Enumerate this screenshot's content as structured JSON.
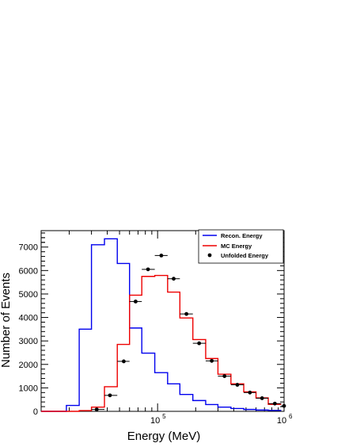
{
  "chart_data": {
    "type": "step-histogram",
    "title": "",
    "xlabel": "Energy (MeV)",
    "ylabel": "Number of Events",
    "xscale": "log",
    "xlim": [
      12000,
      1000000
    ],
    "ylim": [
      0,
      7700
    ],
    "grid": false,
    "legend_placement": "top-right",
    "x_tick_labels": [
      {
        "value": 100000,
        "base": "10",
        "exp": "5"
      },
      {
        "value": 1000000,
        "base": "10",
        "exp": "6"
      }
    ],
    "y_ticks": [
      0,
      1000,
      2000,
      3000,
      4000,
      5000,
      6000,
      7000
    ],
    "bin_edges": [
      12000,
      15000,
      19000,
      24000,
      30000,
      38000,
      48000,
      60000,
      75000,
      95000,
      120000,
      150000,
      190000,
      240000,
      300000,
      380000,
      480000,
      600000,
      750000,
      950000
    ],
    "series": [
      {
        "name": "Recon. Energy",
        "style": "step",
        "color": "#0000ee",
        "values": [
          0,
          0,
          250,
          3500,
          7100,
          7350,
          6300,
          3550,
          2480,
          1650,
          1170,
          720,
          460,
          290,
          180,
          120,
          80,
          55,
          40
        ]
      },
      {
        "name": "MC Energy",
        "style": "step",
        "color": "#ee0000",
        "values": [
          0,
          0,
          0,
          30,
          180,
          1050,
          2850,
          4950,
          5750,
          5790,
          5080,
          3980,
          3060,
          2250,
          1580,
          1170,
          830,
          570,
          300
        ]
      },
      {
        "name": "Unfolded Energy",
        "style": "points-xerr",
        "color": "#000000",
        "points": [
          {
            "x": 33000,
            "xerr": [
              30000,
              38000
            ],
            "y": 80
          },
          {
            "x": 42000,
            "xerr": [
              38000,
              48000
            ],
            "y": 680
          },
          {
            "x": 54000,
            "xerr": [
              48000,
              60000
            ],
            "y": 2130
          },
          {
            "x": 67000,
            "xerr": [
              60000,
              75000
            ],
            "y": 4680
          },
          {
            "x": 84000,
            "xerr": [
              75000,
              95000
            ],
            "y": 6050
          },
          {
            "x": 107000,
            "xerr": [
              95000,
              120000
            ],
            "y": 6640
          },
          {
            "x": 134000,
            "xerr": [
              120000,
              150000
            ],
            "y": 5650
          },
          {
            "x": 169000,
            "xerr": [
              150000,
              190000
            ],
            "y": 4150
          },
          {
            "x": 213000,
            "xerr": [
              190000,
              240000
            ],
            "y": 2900
          },
          {
            "x": 268000,
            "xerr": [
              240000,
              300000
            ],
            "y": 2150
          },
          {
            "x": 338000,
            "xerr": [
              300000,
              380000
            ],
            "y": 1500
          },
          {
            "x": 427000,
            "xerr": [
              380000,
              480000
            ],
            "y": 1130
          },
          {
            "x": 537000,
            "xerr": [
              480000,
              600000
            ],
            "y": 800
          },
          {
            "x": 670000,
            "xerr": [
              600000,
              750000
            ],
            "y": 560
          },
          {
            "x": 845000,
            "xerr": [
              750000,
              950000
            ],
            "y": 330
          },
          {
            "x": 1000000,
            "xerr": [
              950000,
              1000000
            ],
            "y": 230
          }
        ]
      }
    ]
  }
}
